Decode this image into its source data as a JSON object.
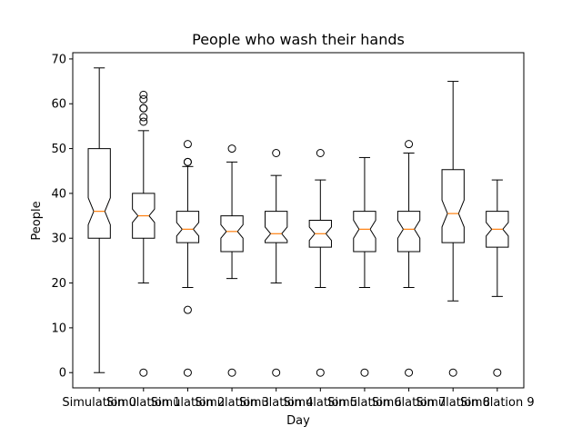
{
  "chart_data": {
    "type": "boxplot",
    "title": "People who wash their hands",
    "xlabel": "Day",
    "ylabel": "People",
    "ylim": [
      -3.4,
      71.4
    ],
    "yticks": [
      0,
      10,
      20,
      30,
      40,
      50,
      60,
      70
    ],
    "notched": true,
    "grid": false,
    "colors": {
      "median": "#ff7f0e",
      "box": "#000000"
    },
    "categories": [
      "Simulation 0",
      "Simulation 1",
      "Simulation 2",
      "Simulation 3",
      "Simulation 4",
      "Simulation 5",
      "Simulation 6",
      "Simulation 7",
      "Simulation 8",
      "Simulation 9"
    ],
    "boxes": [
      {
        "whislo": 0,
        "q1": 30,
        "med": 36,
        "q3": 50,
        "whishi": 68,
        "notchlo": 33,
        "notchhi": 39,
        "fliers": []
      },
      {
        "whislo": 20,
        "q1": 30,
        "med": 35,
        "q3": 40,
        "whishi": 54,
        "notchlo": 33.5,
        "notchhi": 36.5,
        "fliers": [
          0,
          56,
          57,
          59,
          59,
          61,
          62
        ]
      },
      {
        "whislo": 19,
        "q1": 29,
        "med": 32,
        "q3": 36,
        "whishi": 46,
        "notchlo": 30.5,
        "notchhi": 33.5,
        "fliers": [
          0,
          14,
          47,
          47,
          51
        ]
      },
      {
        "whislo": 21,
        "q1": 27,
        "med": 31.5,
        "q3": 35,
        "whishi": 47,
        "notchlo": 30,
        "notchhi": 33,
        "fliers": [
          0,
          50
        ]
      },
      {
        "whislo": 20,
        "q1": 29,
        "med": 31,
        "q3": 36,
        "whishi": 44,
        "notchlo": 29.5,
        "notchhi": 32.5,
        "fliers": [
          0,
          49
        ]
      },
      {
        "whislo": 19,
        "q1": 28,
        "med": 31,
        "q3": 34,
        "whishi": 43,
        "notchlo": 29.5,
        "notchhi": 32.5,
        "fliers": [
          0,
          49
        ]
      },
      {
        "whislo": 19,
        "q1": 27,
        "med": 32,
        "q3": 36,
        "whishi": 48,
        "notchlo": 30,
        "notchhi": 34,
        "fliers": [
          0
        ]
      },
      {
        "whislo": 19,
        "q1": 27,
        "med": 32,
        "q3": 36,
        "whishi": 49,
        "notchlo": 30,
        "notchhi": 34,
        "fliers": [
          0,
          51
        ]
      },
      {
        "whislo": 16,
        "q1": 29,
        "med": 35.5,
        "q3": 45.3,
        "whishi": 65,
        "notchlo": 32.5,
        "notchhi": 38.5,
        "fliers": [
          0
        ]
      },
      {
        "whislo": 17,
        "q1": 28,
        "med": 32,
        "q3": 36,
        "whishi": 43,
        "notchlo": 30.5,
        "notchhi": 33.5,
        "fliers": [
          0
        ]
      }
    ]
  }
}
